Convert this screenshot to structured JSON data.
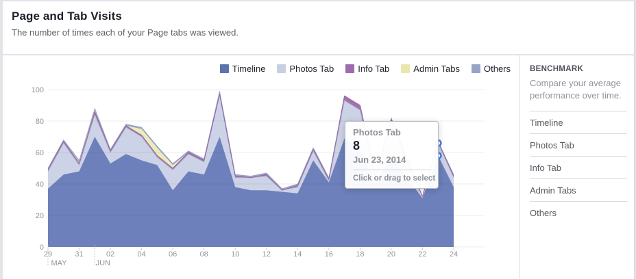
{
  "header": {
    "title": "Page and Tab Visits",
    "subtitle": "The number of times each of your Page tabs was viewed."
  },
  "legend": [
    {
      "label": "Timeline",
      "color": "#5c74ab"
    },
    {
      "label": "Photos Tab",
      "color": "#c9cfe3"
    },
    {
      "label": "Info Tab",
      "color": "#9e6bad"
    },
    {
      "label": "Admin Tabs",
      "color": "#e9e7af"
    },
    {
      "label": "Others",
      "color": "#98a4c6"
    }
  ],
  "chart_data": {
    "type": "area",
    "stacked": true,
    "title": "Page and Tab Visits",
    "xlabel": "",
    "ylabel": "",
    "ylim": [
      0,
      100
    ],
    "yticks": [
      0,
      20,
      40,
      60,
      80,
      100
    ],
    "grid": true,
    "legend_position": "top-right",
    "x": [
      "May 29",
      "May 30",
      "May 31",
      "Jun 1",
      "Jun 2",
      "Jun 3",
      "Jun 4",
      "Jun 5",
      "Jun 6",
      "Jun 7",
      "Jun 8",
      "Jun 9",
      "Jun 10",
      "Jun 11",
      "Jun 12",
      "Jun 13",
      "Jun 14",
      "Jun 15",
      "Jun 16",
      "Jun 17",
      "Jun 18",
      "Jun 19",
      "Jun 20",
      "Jun 21",
      "Jun 22",
      "Jun 23",
      "Jun 24"
    ],
    "x_ticks": [
      {
        "index": 0,
        "label": "29"
      },
      {
        "index": 2,
        "label": "31"
      },
      {
        "index": 4,
        "label": "02"
      },
      {
        "index": 6,
        "label": "04"
      },
      {
        "index": 8,
        "label": "06"
      },
      {
        "index": 10,
        "label": "08"
      },
      {
        "index": 12,
        "label": "10"
      },
      {
        "index": 14,
        "label": "12"
      },
      {
        "index": 16,
        "label": "14"
      },
      {
        "index": 18,
        "label": "16"
      },
      {
        "index": 20,
        "label": "18"
      },
      {
        "index": 22,
        "label": "20"
      },
      {
        "index": 24,
        "label": "22"
      },
      {
        "index": 26,
        "label": "24"
      }
    ],
    "months": [
      {
        "index": 0,
        "label": "MAY"
      },
      {
        "index": 3,
        "label": "JUN"
      }
    ],
    "series": [
      {
        "name": "Timeline",
        "fill": "#6d80bb",
        "values": [
          37,
          46,
          48,
          70,
          53,
          59,
          55,
          52,
          36,
          48,
          46,
          70,
          38,
          36,
          36,
          35,
          34,
          55,
          41,
          69,
          62,
          40,
          58,
          44,
          31,
          58,
          38
        ]
      },
      {
        "name": "Photos Tab",
        "fill": "#cdd3e6",
        "stroke": "#a9b1cd",
        "values": [
          11,
          20,
          4,
          14,
          7,
          17,
          15,
          5,
          13,
          11,
          8,
          27,
          6,
          8,
          9,
          1,
          4,
          6,
          1,
          24,
          25,
          4,
          22,
          11,
          1,
          8,
          6
        ]
      },
      {
        "name": "Info Tab",
        "fill": "#a471ad",
        "stroke": "#9b63a2",
        "values": [
          1,
          1,
          1,
          2,
          1,
          1,
          1,
          1,
          1,
          1,
          1,
          0,
          1,
          0,
          1,
          0,
          1,
          1,
          1,
          3,
          3,
          1,
          1,
          1,
          0,
          1,
          1
        ]
      },
      {
        "name": "Admin Tabs",
        "fill": "#ecebba",
        "values": [
          0,
          0,
          1,
          1,
          0,
          0,
          4,
          5,
          2,
          0,
          0,
          0,
          0,
          0,
          0,
          0,
          0,
          0,
          0,
          0,
          0,
          0,
          0,
          0,
          0,
          0,
          0
        ]
      },
      {
        "name": "Others",
        "fill": "#9aa6c9",
        "stroke": "#8f9bc0",
        "values": [
          1,
          1,
          1,
          1,
          1,
          1,
          1,
          1,
          1,
          1,
          1,
          2,
          1,
          1,
          1,
          1,
          1,
          1,
          1,
          0,
          0,
          1,
          1,
          1,
          0,
          0,
          1
        ]
      }
    ]
  },
  "tooltip": {
    "series": "Photos Tab",
    "value": "8",
    "date": "Jun 23, 2014",
    "hint": "Click or drag to select",
    "point_index": 25,
    "marker_color": "#3f7cf0"
  },
  "benchmark": {
    "title": "BENCHMARK",
    "subtitle": "Compare your average performance over time.",
    "items": [
      "Timeline",
      "Photos Tab",
      "Info Tab",
      "Admin Tabs",
      "Others"
    ]
  }
}
